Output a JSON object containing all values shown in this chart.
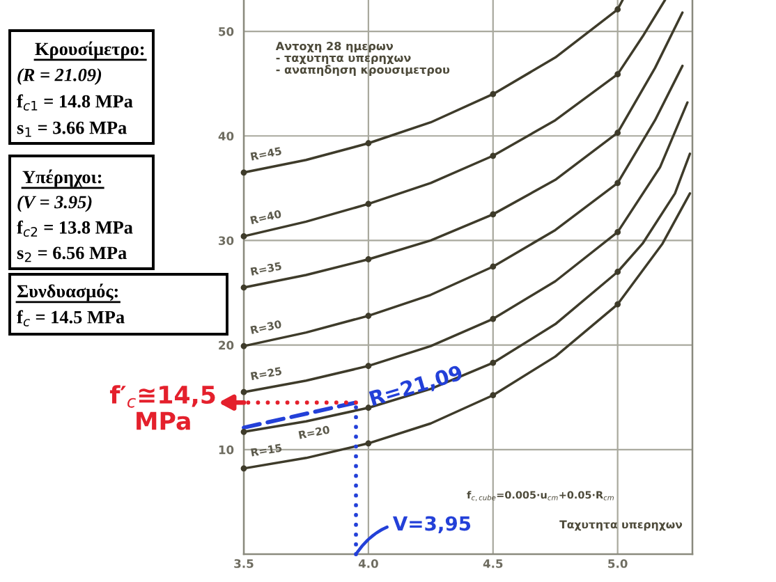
{
  "chart_data": {
    "type": "line",
    "xlim": [
      3.5,
      5.3
    ],
    "ylim": [
      0,
      53
    ],
    "xticks": [
      3.5,
      {
        "value": 4,
        "label": "4.0"
      },
      4.5,
      {
        "value": 5,
        "label": "5.0"
      }
    ],
    "yticks": [
      10,
      20,
      30,
      40,
      50
    ],
    "grid": true,
    "line_style": "solid",
    "xlabel": "Ταχυτητα υπερηχων",
    "series": [
      {
        "name": "R=45",
        "color": "#3e3b2a",
        "x": [
          3.5,
          3.75,
          4.0,
          4.25,
          4.5,
          4.75,
          5.0,
          5.02
        ],
        "values": [
          36.5,
          37.7,
          39.3,
          41.3,
          44.0,
          47.5,
          52.1,
          53
        ]
      },
      {
        "name": "R=40",
        "color": "#3e3b2a",
        "x": [
          3.5,
          3.75,
          4.0,
          4.25,
          4.5,
          4.75,
          5.0,
          5.1,
          5.19
        ],
        "values": [
          30.4,
          31.8,
          33.5,
          35.5,
          38.1,
          41.5,
          45.9,
          49.5,
          53
        ]
      },
      {
        "name": "R=35",
        "color": "#3e3b2a",
        "x": [
          3.5,
          3.75,
          4.0,
          4.25,
          4.5,
          4.75,
          5.0,
          5.15,
          5.26
        ],
        "values": [
          25.5,
          26.7,
          28.2,
          30.0,
          32.5,
          35.8,
          40.3,
          46.5,
          51.8
        ]
      },
      {
        "name": "R=30",
        "color": "#3e3b2a",
        "x": [
          3.5,
          3.75,
          4.0,
          4.25,
          4.5,
          4.75,
          5.0,
          5.15,
          5.26
        ],
        "values": [
          19.9,
          21.2,
          22.8,
          24.8,
          27.5,
          31.0,
          35.5,
          41.5,
          46.7
        ]
      },
      {
        "name": "R=25",
        "color": "#3e3b2a",
        "x": [
          3.5,
          3.75,
          4.0,
          4.25,
          4.5,
          4.75,
          5.0,
          5.17,
          5.28
        ],
        "values": [
          15.5,
          16.6,
          18.0,
          19.9,
          22.5,
          26.1,
          30.8,
          37.0,
          43.2
        ]
      },
      {
        "name": "R=20",
        "color": "#3e3b2a",
        "x": [
          3.5,
          3.75,
          4.0,
          4.25,
          4.5,
          4.75,
          5.0,
          5.1,
          5.23,
          5.29
        ],
        "values": [
          11.7,
          12.7,
          14.0,
          15.8,
          18.3,
          22.0,
          27.0,
          29.7,
          34.5,
          38.3
        ]
      },
      {
        "name": "R=15",
        "color": "#3e3b2a",
        "x": [
          3.5,
          3.75,
          4.0,
          4.25,
          4.5,
          4.75,
          5.0,
          5.18,
          5.29
        ],
        "values": [
          8.2,
          9.2,
          10.6,
          12.5,
          15.2,
          18.9,
          23.9,
          29.7,
          34.5
        ]
      },
      {
        "type": "scatter",
        "color": "#3e3b2a",
        "marker": "circle",
        "x": [
          3.5,
          4.0,
          4.5,
          5.0,
          3.5,
          4.0,
          4.5,
          5.0,
          3.5,
          4.0,
          4.5,
          5.0,
          3.5,
          4.0,
          4.5,
          5.0,
          3.5,
          4.0,
          4.5,
          5.0,
          3.5,
          4.0,
          4.5,
          5.0,
          3.5,
          4.0,
          4.5,
          5.0
        ],
        "values": [
          36.5,
          39.3,
          44.0,
          52.1,
          30.4,
          33.5,
          38.1,
          45.9,
          25.5,
          28.2,
          32.5,
          40.3,
          19.9,
          22.8,
          27.5,
          35.5,
          15.5,
          18.0,
          22.5,
          30.8,
          11.7,
          14.0,
          18.3,
          27.0,
          8.2,
          10.6,
          15.2,
          23.9
        ]
      },
      {
        "name": "R=21,09",
        "color": "#2340d8",
        "x": [
          3.5,
          3.95
        ],
        "values": [
          12.1,
          14.5
        ],
        "line_style": "dashed",
        "marker": "none"
      },
      {
        "name": "V=3,95",
        "color": "#2340d8",
        "x": [
          3.95,
          3.95
        ],
        "values": [
          0,
          14.5
        ],
        "line_style": "dotted",
        "marker": "none"
      },
      {
        "name": "f′$_{c}$≅14,5\nMPa",
        "color": "#e4202c",
        "x": [
          3.95,
          3.5
        ],
        "values": [
          14.5,
          14.5
        ],
        "line_style": "dotted",
        "marker": "none"
      }
    ],
    "annotations": [
      "Αντοχη 28 ημερων\n- ταχυτητα υπερηχων\n- αναπηδηση κρουσιμετρου",
      "f$_{c,cube}$=0.005·u$_{cm}$+0.05·R$_{cm}$",
      "Κρουσίμετρο:\n(R = 21.09)\nf$_{c1}$ = 14.8 MPa\ns$_{1}$ = 3.66 MPa",
      "Υπέρηχοι:\n(V = 3.95)\nf$_{c2}$ = 13.8 MPa\ns$_{2}$ = 6.56 MPa",
      "Συνδυασμός:\nf$_{c}$ = 14.5 MPa"
    ]
  }
}
